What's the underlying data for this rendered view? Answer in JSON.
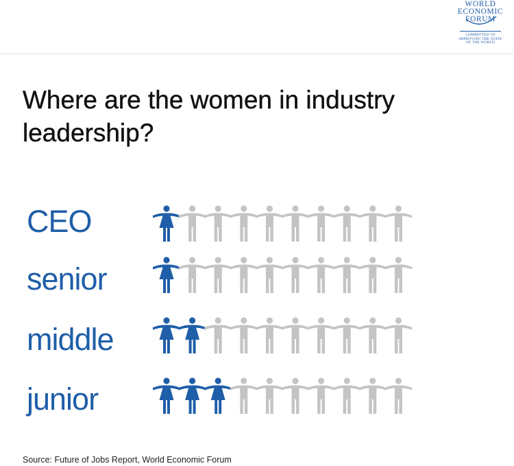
{
  "logo": {
    "lines": [
      "WORLD",
      "ECONOMIC",
      "FORUM"
    ],
    "tagline": [
      "COMMITTED TO",
      "IMPROVING THE STATE",
      "OF THE WORLD"
    ]
  },
  "title": "Where are the women in industry leadership?",
  "source": "Source: Future of Jobs Report, World Economic Forum",
  "colors": {
    "women": "#1f5ea8",
    "men": "#c4c4c4",
    "label": "#1f5ea8",
    "text": "#111111"
  },
  "chart_data": {
    "type": "pictogram",
    "icons_per_row": 10,
    "categories": [
      "CEO",
      "senior",
      "middle",
      "junior"
    ],
    "series": [
      {
        "name": "women",
        "values": [
          1,
          1.5,
          2.5,
          3.5
        ]
      },
      {
        "name": "men",
        "values": [
          9,
          8.5,
          7.5,
          6.5
        ]
      }
    ]
  }
}
